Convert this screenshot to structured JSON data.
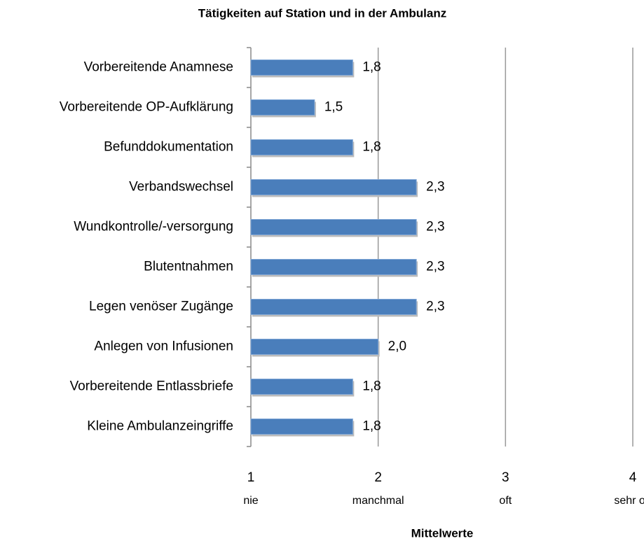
{
  "chart_data": {
    "type": "bar",
    "orientation": "horizontal",
    "title": "Tätigkeiten auf Station und in der Ambulanz",
    "x_label": "Mittelwerte",
    "categories": [
      "Vorbereitende Anamnese",
      "Vorbereitende OP-Aufklärung",
      "Befunddokumentation",
      "Verbandswechsel",
      "Wundkontrolle/-versorgung",
      "Blutentnahmen",
      "Legen venöser Zugänge",
      "Anlegen von Infusionen",
      "Vorbereitende Entlassbriefe",
      "Kleine Ambulanzeingriffe"
    ],
    "values": [
      1.8,
      1.5,
      1.8,
      2.3,
      2.3,
      2.3,
      2.3,
      2.0,
      1.8,
      1.8
    ],
    "value_labels": [
      "1,8",
      "1,5",
      "1,8",
      "2,3",
      "2,3",
      "2,3",
      "2,3",
      "2,0",
      "1,8",
      "1,8"
    ],
    "color": "#4a7ebb",
    "xlim": [
      1,
      4
    ],
    "xticks": [
      1,
      2,
      3,
      4
    ],
    "xtick_descriptions": [
      "nie",
      "manchmal",
      "oft",
      "sehr oft"
    ],
    "grid": true
  }
}
